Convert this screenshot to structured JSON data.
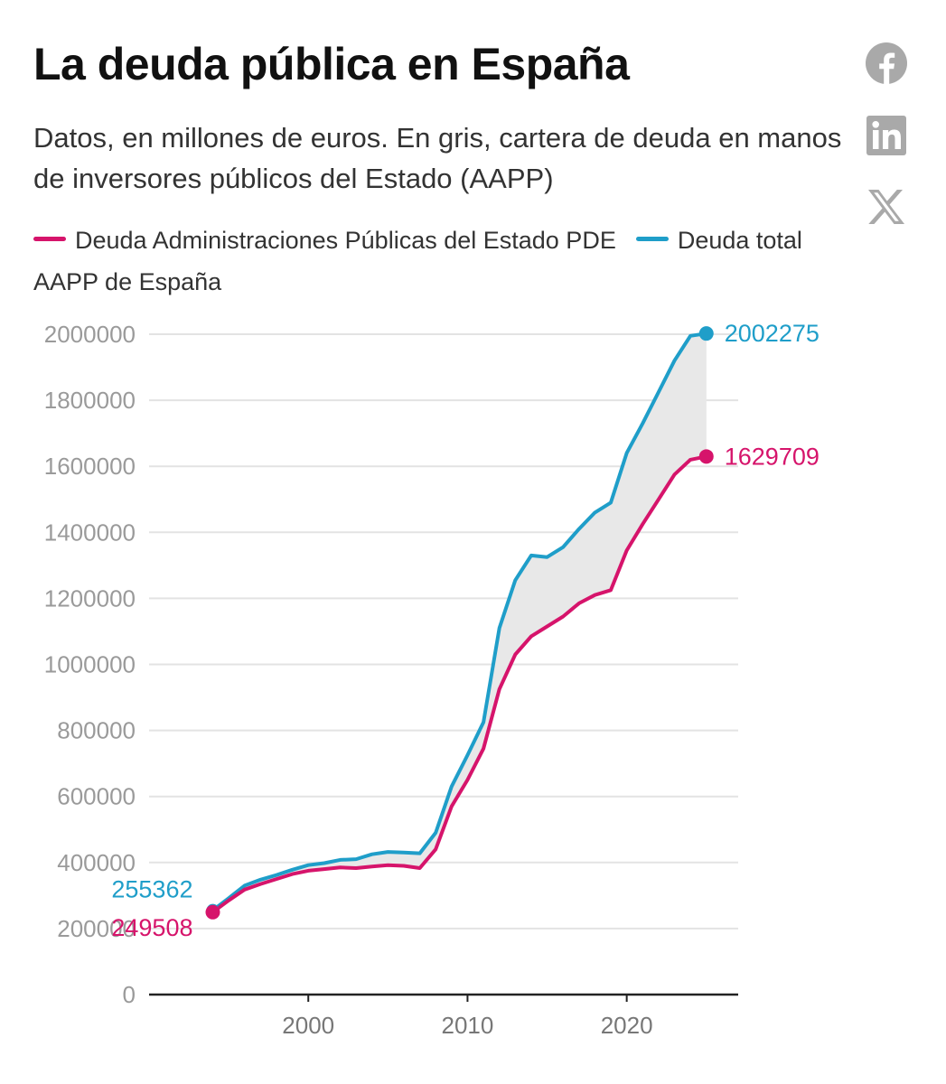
{
  "header": {
    "title": "La deuda pública en España",
    "subtitle": "Datos, en millones de euros. En gris, cartera de deuda en manos de inversores públicos del Estado (AAPP)"
  },
  "share": {
    "icons": [
      "facebook-icon",
      "linkedin-icon",
      "x-icon"
    ]
  },
  "colors": {
    "pde": "#d6146b",
    "total": "#1f9ec9",
    "band": "#e8e8e8",
    "grid": "#e3e3e3",
    "axis": "#222222"
  },
  "chart_data": {
    "type": "line",
    "title": "La deuda pública en España",
    "subtitle": "Datos, en millones de euros. En gris, cartera de deuda en manos de inversores públicos del Estado (AAPP)",
    "xlabel": "",
    "ylabel": "",
    "xlim": [
      1990,
      2027
    ],
    "ylim": [
      0,
      2000000
    ],
    "x_ticks": [
      2000,
      2010,
      2020
    ],
    "y_ticks": [
      0,
      200000,
      400000,
      600000,
      800000,
      1000000,
      1200000,
      1400000,
      1600000,
      1800000,
      2000000
    ],
    "y_tick_labels": [
      "0",
      "200000",
      "400000",
      "600000",
      "800000",
      "1000000",
      "1200000",
      "1400000",
      "1600000",
      "1800000",
      "2000000"
    ],
    "x_tick_labels": [
      "2000",
      "2010",
      "2020"
    ],
    "grid": true,
    "legend_position": "top",
    "shaded_between_series": true,
    "x": [
      1994,
      1995,
      1996,
      1997,
      1998,
      1999,
      2000,
      2001,
      2002,
      2003,
      2004,
      2005,
      2006,
      2007,
      2008,
      2009,
      2010,
      2011,
      2012,
      2013,
      2014,
      2015,
      2016,
      2017,
      2018,
      2019,
      2020,
      2021,
      2022,
      2023,
      2024,
      2025
    ],
    "series": [
      {
        "name": "Deuda Administraciones Públicas del Estado PDE",
        "color": "#d6146b",
        "values": [
          249508,
          285000,
          318000,
          335000,
          350000,
          365000,
          375000,
          380000,
          385000,
          383000,
          388000,
          392000,
          390000,
          383000,
          440000,
          570000,
          650000,
          745000,
          925000,
          1030000,
          1085000,
          1115000,
          1145000,
          1185000,
          1210000,
          1225000,
          1345000,
          1425000,
          1500000,
          1575000,
          1620000,
          1629709
        ],
        "start_label": "249508",
        "end_label": "1629709"
      },
      {
        "name": "Deuda total AAPP de España",
        "color": "#1f9ec9",
        "values": [
          255362,
          292000,
          330000,
          348000,
          362000,
          378000,
          392000,
          398000,
          408000,
          410000,
          425000,
          432000,
          430000,
          428000,
          490000,
          630000,
          725000,
          825000,
          1110000,
          1255000,
          1330000,
          1325000,
          1355000,
          1410000,
          1460000,
          1490000,
          1640000,
          1730000,
          1825000,
          1920000,
          1995000,
          2002275
        ],
        "start_label": "255362",
        "end_label": "2002275"
      }
    ]
  }
}
